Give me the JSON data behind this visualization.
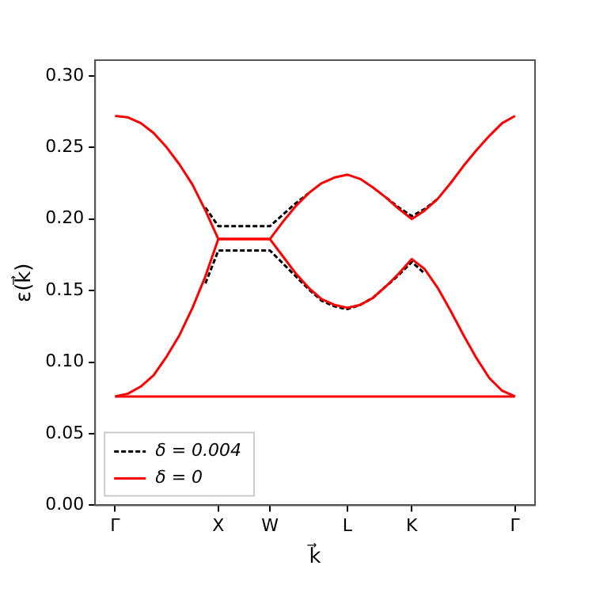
{
  "chart_data": {
    "type": "line",
    "xlabel": "k⃗",
    "ylabel": "ε(k⃗)",
    "ylim": [
      0,
      0.311
    ],
    "categories": [
      "Γ",
      null,
      null,
      null,
      null,
      null,
      null,
      null,
      "X",
      null,
      null,
      null,
      "W",
      null,
      null,
      null,
      null,
      null,
      "L",
      null,
      null,
      null,
      null,
      "K",
      null,
      null,
      null,
      null,
      null,
      null,
      null,
      "Γ"
    ],
    "yticks": [
      {
        "value": 0,
        "label": "0.00"
      },
      {
        "value": 0.05,
        "label": "0.05"
      },
      {
        "value": 0.1,
        "label": "0.10"
      },
      {
        "value": 0.15,
        "label": "0.15"
      },
      {
        "value": 0.2,
        "label": "0.20"
      },
      {
        "value": 0.25,
        "label": "0.25"
      },
      {
        "value": 0.3,
        "label": "0.30"
      }
    ],
    "grid": false,
    "legend": "bottom left",
    "marker": "none",
    "series": [
      {
        "name": "δ = 0.004",
        "color": "#000000",
        "line_style": "dashed",
        "values": [
          null,
          null,
          null,
          null,
          null,
          null,
          null,
          0.208,
          0.195,
          0.195,
          0.195,
          0.195,
          0.195,
          0.203,
          0.211,
          0.218,
          null,
          null,
          null,
          null,
          null,
          0.215,
          0.208,
          0.202,
          0.207,
          0.214,
          null,
          null,
          null,
          null,
          null,
          null
        ]
      },
      {
        "color": "#000000",
        "line_style": "dashed",
        "values": [
          null,
          null,
          null,
          null,
          null,
          null,
          null,
          0.155,
          0.178,
          0.178,
          0.178,
          0.178,
          0.178,
          0.169,
          0.16,
          0.151,
          0.143,
          0.139,
          0.137,
          0.14,
          0.145,
          0.153,
          0.161,
          0.17,
          0.162,
          null,
          null,
          null,
          null,
          null,
          null,
          null
        ]
      },
      {
        "name": "δ = 0",
        "color": "#ff0000",
        "line_style": "solid",
        "values": [
          0.272,
          0.271,
          0.267,
          0.26,
          0.25,
          0.238,
          0.224,
          0.206,
          0.186,
          0.186,
          0.186,
          0.186,
          0.186,
          0.198,
          0.209,
          0.218,
          0.225,
          0.229,
          0.231,
          0.228,
          0.222,
          0.215,
          0.207,
          0.2,
          0.206,
          0.214,
          0.225,
          0.237,
          0.248,
          0.258,
          0.267,
          0.272
        ]
      },
      {
        "color": "#ff0000",
        "line_style": "solid",
        "values": [
          0.076,
          0.078,
          0.083,
          0.091,
          0.104,
          0.119,
          0.138,
          0.16,
          0.186,
          0.186,
          0.186,
          0.186,
          0.186,
          0.174,
          0.162,
          0.152,
          0.144,
          0.14,
          0.138,
          0.14,
          0.145,
          0.153,
          0.162,
          0.172,
          0.165,
          0.152,
          0.136,
          0.119,
          0.103,
          0.089,
          0.08,
          0.076
        ]
      },
      {
        "color": "#ff0000",
        "line_style": "solid",
        "values": [
          0.076,
          0.076,
          0.076,
          0.076,
          0.076,
          0.076,
          0.076,
          0.076,
          0.076,
          0.076,
          0.076,
          0.076,
          0.076,
          0.076,
          0.076,
          0.076,
          0.076,
          0.076,
          0.076,
          0.076,
          0.076,
          0.076,
          0.076,
          0.076,
          0.076,
          0.076,
          0.076,
          0.076,
          0.076,
          0.076,
          0.076,
          0.076
        ]
      }
    ]
  }
}
